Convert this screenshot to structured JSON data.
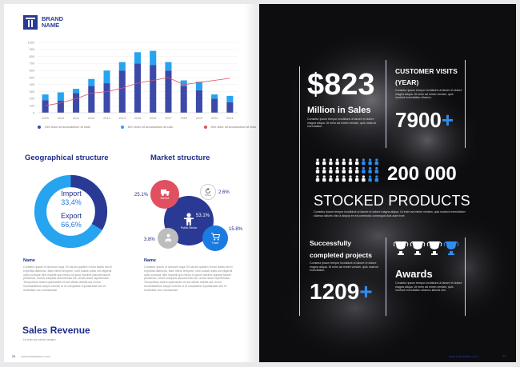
{
  "brand": {
    "line1": "BRAND",
    "line2": "NAME"
  },
  "chart_data": {
    "type": "bar",
    "categories": [
      "2009",
      "2010",
      "2011",
      "2012",
      "2013",
      "2014",
      "2015",
      "2016",
      "2017",
      "2018",
      "2019",
      "2020",
      "2021"
    ],
    "series": [
      {
        "name": "Dim dolor sit accusantium at iusto",
        "values": [
          180,
          170,
          280,
          380,
          420,
          600,
          700,
          680,
          600,
          380,
          320,
          200,
          150
        ],
        "color": "#3b4aa8"
      },
      {
        "name": "Dim dolor sit accusantium at iusto",
        "values": [
          80,
          120,
          60,
          100,
          180,
          120,
          160,
          200,
          120,
          80,
          120,
          60,
          90
        ],
        "color": "#27a4f0"
      },
      {
        "name": "Dim dolor sit accusantium at iusto",
        "values": [
          100,
          140,
          200,
          280,
          300,
          350,
          420,
          460,
          500,
          400,
          430,
          460,
          490
        ],
        "color": "#e05060"
      }
    ],
    "ylim": [
      0,
      1000
    ],
    "yticks": [
      "1000",
      "900",
      "800",
      "700",
      "600",
      "500",
      "400",
      "300",
      "200",
      "100",
      "0"
    ]
  },
  "geo": {
    "title": "Geographical structure",
    "import_label": "Import",
    "import_value": "33,4%",
    "export_label": "Export",
    "export_value": "66,6%",
    "import_fraction": 0.334,
    "name_label": "Name",
    "body": "Consetur ipsum et dolorum fuga. Et harum quidem rerum facilis est et expedita distinctio. Nam libero tempore, cum soluta nobis est eligendi optio cumque nihil impedit quo minus id quod maxime placeat facere possimus, omnis voluptas assumenda est, omnis dolor repellendus. Temporibus autem quibusdam et aut officiis debitis aut rerum necessitatibus saepe eveniet ut et voluptates repudiandae sint et molestiae non recusandae."
  },
  "market": {
    "title": "Market structure",
    "center_pct": "53.1%",
    "center_label": "Public Sector",
    "service_label": "Service",
    "service_pct": "25.1%",
    "other_label": "Others",
    "other_pct": "2.6%",
    "trade_label": "Trade",
    "trade_pct": "15.8%",
    "private_label": "Private",
    "private_pct": "3.8%",
    "name_label": "Name",
    "body": "Consetur ipsum et dolorum fuga. Et harum quidem rerum facilis est et expedita distinctio. Nam libero tempore, cum soluta nobis est eligendi optio cumque nihil impedit quo minus id quod maxime placeat facere possimus, omnis voluptas assumenda est, omnis dolor repellendus. Temporibus autem quibusdam et aut officiis debitis aut rerum necessitatibus saepe eveniet ut et voluptates repudiandae sint et molestiae non recusandae."
  },
  "sales": {
    "title": "Sales Revenue",
    "sub": "Ut enim ad minim veniam"
  },
  "footer_left": {
    "page": "29",
    "url": "www.brandname.com"
  },
  "right": {
    "money": "$823",
    "money_label": "Million in Sales",
    "money_body": "Consetur ipsum tempor incididunt ut labore et dolore magna aliqua. Ut enim ad minim veniam, quis nostrud exercitation.",
    "visits_title_1": "CUSTOMER VISITS",
    "visits_title_2": "(YEAR)",
    "visits_body": "Consetur ipsum tempor incididunt ut labore et dolore magna aliqua. Ut enim ad minim veniam, quis nostrud exercitation ullamco.",
    "visits_value": "7900",
    "plus": "+",
    "stocked_value": "200 000",
    "stocked_label": "STOCKED PRODUCTS",
    "stocked_body": "Consetur ipsum tempor incididunt ut labore et dolore magna aliqua. Ut enim ad minim veniam, quis nostrud exercitation ullamco laboris nisi ut aliquip ex ea commodo consequat duis aute irure.",
    "projects_title_1": "Successfully",
    "projects_title_2": "completed projects",
    "projects_body": "Consetur ipsum tempor incididunt ut labore et dolore magna aliqua. Ut enim ad minim veniam, quis nostrud exercitation.",
    "projects_value": "1209",
    "awards_title": "Awards",
    "awards_body": "Consetur ipsum tempor incididunt ut labore et dolore magna aliqua. Ut enim ad minim veniam, quis nostrud exercitation ullamco laboris nisi.",
    "footer_url": "www.brandname.com",
    "footer_page": "30"
  },
  "colors": {
    "navy": "#1e2d8a",
    "blue": "#2f8df0",
    "red": "#e05060",
    "gray": "#bdbdbd"
  }
}
